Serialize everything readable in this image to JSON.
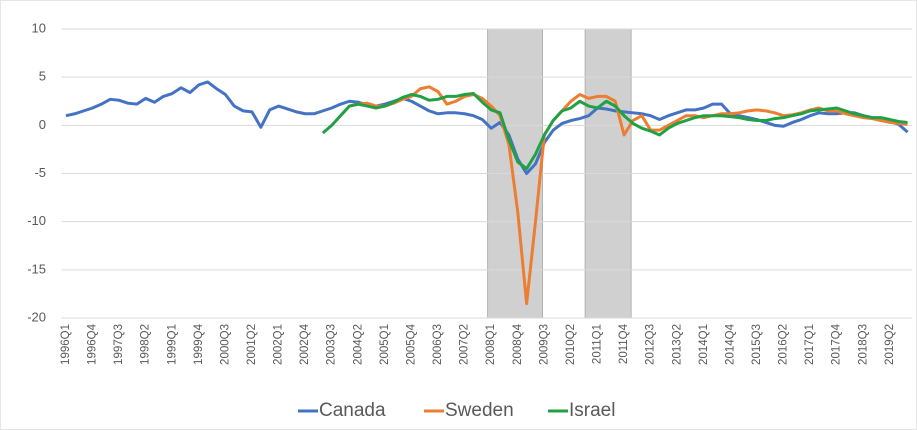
{
  "chart_data": {
    "type": "line",
    "categories": [
      "1996Q1",
      null,
      null,
      "1996Q4",
      null,
      null,
      "1997Q3",
      null,
      null,
      "1998Q2",
      null,
      null,
      "1999Q1",
      null,
      null,
      "1999Q4",
      null,
      null,
      "2000Q3",
      null,
      null,
      "2001Q2",
      null,
      null,
      "2002Q1",
      null,
      null,
      "2002Q4",
      null,
      null,
      "2003Q3",
      null,
      null,
      "2004Q2",
      null,
      null,
      "2005Q1",
      null,
      null,
      "2005Q4",
      null,
      null,
      "2006Q3",
      null,
      null,
      "2007Q2",
      null,
      null,
      "2008Q1",
      null,
      null,
      "2008Q4",
      null,
      null,
      "2009Q3",
      null,
      null,
      "2010Q2",
      null,
      null,
      "2011Q1",
      null,
      null,
      "2011Q4",
      null,
      null,
      "2012Q3",
      null,
      null,
      "2013Q2",
      null,
      null,
      "2014Q1",
      null,
      null,
      "2014Q4",
      null,
      null,
      "2015Q3",
      null,
      null,
      "2016Q2",
      null,
      null,
      "2017Q1",
      null,
      null,
      "2017Q4",
      null,
      null,
      "2018Q3",
      null,
      null,
      "2019Q2",
      null,
      null
    ],
    "series": [
      {
        "name": "Canada",
        "color": "#4472c4",
        "values": [
          1.0,
          1.2,
          1.5,
          1.8,
          2.2,
          2.7,
          2.6,
          2.3,
          2.2,
          2.8,
          2.4,
          3.0,
          3.3,
          3.9,
          3.4,
          4.2,
          4.5,
          3.8,
          3.2,
          2.0,
          1.5,
          1.4,
          -0.2,
          1.6,
          2.0,
          1.7,
          1.4,
          1.2,
          1.2,
          1.5,
          1.8,
          2.2,
          2.5,
          2.4,
          2.1,
          2.0,
          2.2,
          2.5,
          2.8,
          2.5,
          2.0,
          1.5,
          1.2,
          1.3,
          1.3,
          1.2,
          1.0,
          0.6,
          -0.3,
          0.3,
          -1.0,
          -3.5,
          -5.0,
          -4.0,
          -1.8,
          -0.5,
          0.2,
          0.5,
          0.7,
          1.0,
          1.8,
          1.7,
          1.5,
          1.4,
          1.3,
          1.2,
          1.0,
          0.6,
          1.0,
          1.3,
          1.6,
          1.6,
          1.8,
          2.2,
          2.2,
          1.2,
          1.0,
          0.8,
          0.6,
          0.3,
          0.0,
          -0.1,
          0.3,
          0.6,
          1.0,
          1.3,
          1.2,
          1.2,
          1.3,
          1.3,
          1.0,
          0.8,
          0.5,
          0.4,
          0.1,
          -0.7
        ]
      },
      {
        "name": "Sweden",
        "color": "#ed7d31",
        "values": [
          null,
          null,
          null,
          null,
          null,
          null,
          null,
          null,
          null,
          null,
          null,
          null,
          null,
          null,
          null,
          null,
          null,
          null,
          null,
          null,
          null,
          null,
          null,
          null,
          null,
          null,
          null,
          null,
          null,
          null,
          null,
          null,
          2.0,
          2.2,
          2.3,
          2.0,
          2.0,
          2.3,
          2.7,
          3.0,
          3.8,
          4.0,
          3.5,
          2.2,
          2.5,
          3.0,
          3.2,
          2.8,
          2.0,
          1.0,
          -2.0,
          -9.0,
          -18.5,
          -10.0,
          -1.0,
          0.5,
          1.5,
          2.5,
          3.2,
          2.8,
          3.0,
          3.0,
          2.5,
          -1.0,
          0.5,
          1.0,
          -0.5,
          -0.5,
          0.0,
          0.5,
          1.0,
          1.0,
          0.8,
          1.0,
          1.2,
          1.2,
          1.3,
          1.5,
          1.6,
          1.5,
          1.3,
          1.0,
          1.1,
          1.3,
          1.6,
          1.8,
          1.5,
          1.5,
          1.2,
          1.0,
          0.8,
          0.7,
          0.5,
          0.3,
          0.2,
          0.1
        ]
      },
      {
        "name": "Israel",
        "color": "#21a146",
        "values": [
          null,
          null,
          null,
          null,
          null,
          null,
          null,
          null,
          null,
          null,
          null,
          null,
          null,
          null,
          null,
          null,
          null,
          null,
          null,
          null,
          null,
          null,
          null,
          null,
          null,
          null,
          null,
          null,
          null,
          -0.8,
          0.0,
          1.0,
          2.0,
          2.2,
          2.0,
          1.8,
          2.0,
          2.4,
          2.9,
          3.2,
          3.0,
          2.6,
          2.7,
          3.0,
          3.0,
          3.2,
          3.3,
          2.4,
          1.6,
          1.3,
          -1.5,
          -3.8,
          -4.5,
          -3.0,
          -1.0,
          0.5,
          1.5,
          1.8,
          2.5,
          2.0,
          1.8,
          2.5,
          2.0,
          1.0,
          0.2,
          -0.3,
          -0.6,
          -1.0,
          -0.3,
          0.2,
          0.5,
          0.8,
          1.0,
          1.0,
          1.0,
          0.9,
          0.8,
          0.6,
          0.5,
          0.5,
          0.7,
          0.8,
          1.0,
          1.2,
          1.5,
          1.6,
          1.7,
          1.8,
          1.5,
          1.2,
          1.0,
          0.8,
          0.8,
          0.6,
          0.4,
          0.3
        ]
      }
    ],
    "shaded": [
      [
        47.6,
        53.8
      ],
      [
        58.6,
        63.8
      ]
    ],
    "ylim": [
      -20,
      10
    ],
    "yticks": [
      10,
      5,
      0,
      -5,
      -10,
      -15,
      -20
    ],
    "grid": true
  }
}
